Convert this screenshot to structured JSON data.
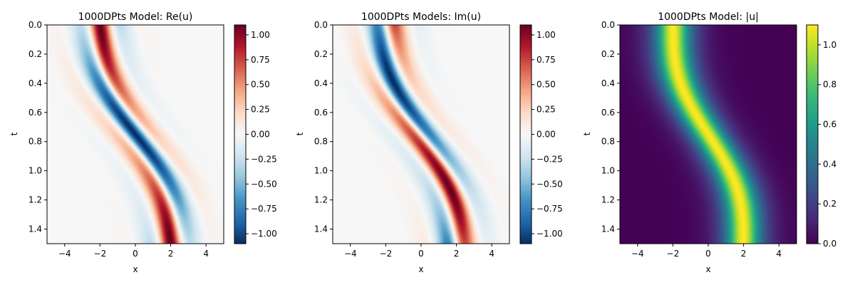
{
  "chart_data": [
    {
      "type": "heatmap",
      "title": "1000DPts Model: Re(u)",
      "xlabel": "x",
      "ylabel": "t",
      "xlim": [
        -5,
        5
      ],
      "ylim": [
        0,
        1.5
      ],
      "y_inverted": true,
      "x_ticks": [
        "−4",
        "−2",
        "0",
        "2",
        "4"
      ],
      "x_tick_values": [
        -4,
        -2,
        0,
        2,
        4
      ],
      "y_ticks": [
        "0.0",
        "0.2",
        "0.4",
        "0.6",
        "0.8",
        "1.0",
        "1.2",
        "1.4"
      ],
      "y_tick_values": [
        0.0,
        0.2,
        0.4,
        0.6,
        0.8,
        1.0,
        1.2,
        1.4
      ],
      "colormap": "RdBu_r",
      "color_range": [
        -1.1,
        1.1
      ],
      "colorbar_ticks": [
        "−1.00",
        "−0.75",
        "−0.50",
        "−0.25",
        "0.00",
        "0.25",
        "0.50",
        "0.75",
        "1.00"
      ],
      "colorbar_tick_values": [
        -1.0,
        -0.75,
        -0.5,
        -0.25,
        0.0,
        0.25,
        0.5,
        0.75,
        1.0
      ],
      "field": "real",
      "soliton": {
        "path_x_start": -2,
        "path_x_end": 2,
        "amplitude": 1.1,
        "phase_cycles": 1.0
      }
    },
    {
      "type": "heatmap",
      "title": "1000DPts Models: Im(u)",
      "xlabel": "x",
      "ylabel": "t",
      "xlim": [
        -5,
        5
      ],
      "ylim": [
        0,
        1.5
      ],
      "y_inverted": true,
      "x_ticks": [
        "−4",
        "−2",
        "0",
        "2",
        "4"
      ],
      "x_tick_values": [
        -4,
        -2,
        0,
        2,
        4
      ],
      "y_ticks": [
        "0.0",
        "0.2",
        "0.4",
        "0.6",
        "0.8",
        "1.0",
        "1.2",
        "1.4"
      ],
      "y_tick_values": [
        0.0,
        0.2,
        0.4,
        0.6,
        0.8,
        1.0,
        1.2,
        1.4
      ],
      "colormap": "RdBu_r",
      "color_range": [
        -1.1,
        1.1
      ],
      "colorbar_ticks": [
        "−1.00",
        "−0.75",
        "−0.50",
        "−0.25",
        "0.00",
        "0.25",
        "0.50",
        "0.75",
        "1.00"
      ],
      "colorbar_tick_values": [
        -1.0,
        -0.75,
        -0.5,
        -0.25,
        0.0,
        0.25,
        0.5,
        0.75,
        1.0
      ],
      "field": "imag",
      "soliton": {
        "path_x_start": -2,
        "path_x_end": 2,
        "amplitude": 1.1,
        "phase_cycles": 1.0
      }
    },
    {
      "type": "heatmap",
      "title": "1000DPts Model: |u|",
      "xlabel": "x",
      "ylabel": "t",
      "xlim": [
        -5,
        5
      ],
      "ylim": [
        0,
        1.5
      ],
      "y_inverted": true,
      "x_ticks": [
        "−4",
        "−2",
        "0",
        "2",
        "4"
      ],
      "x_tick_values": [
        -4,
        -2,
        0,
        2,
        4
      ],
      "y_ticks": [
        "0.0",
        "0.2",
        "0.4",
        "0.6",
        "0.8",
        "1.0",
        "1.2",
        "1.4"
      ],
      "y_tick_values": [
        0.0,
        0.2,
        0.4,
        0.6,
        0.8,
        1.0,
        1.2,
        1.4
      ],
      "colormap": "viridis",
      "color_range": [
        0,
        1.1
      ],
      "colorbar_ticks": [
        "0.0",
        "0.2",
        "0.4",
        "0.6",
        "0.8",
        "1.0"
      ],
      "colorbar_tick_values": [
        0.0,
        0.2,
        0.4,
        0.6,
        0.8,
        1.0
      ],
      "field": "abs",
      "soliton": {
        "path_x_start": -2,
        "path_x_end": 2,
        "amplitude": 1.1,
        "phase_cycles": 1.0
      }
    }
  ]
}
